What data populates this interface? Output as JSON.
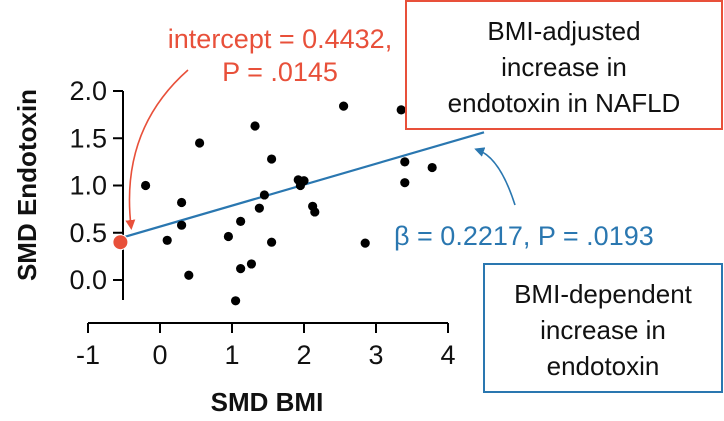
{
  "chart_data": {
    "type": "scatter",
    "xlabel": "SMD BMI",
    "ylabel": "SMD Endotoxin",
    "xlim": [
      -1,
      4
    ],
    "ylim": [
      -0.3,
      2.0
    ],
    "x_ticks": [
      "-1",
      "0",
      "1",
      "2",
      "3",
      "4"
    ],
    "y_ticks": [
      "0.0",
      "0.5",
      "1.0",
      "1.5",
      "2.0"
    ],
    "x_tick_values": [
      -1,
      0,
      1,
      2,
      3,
      4
    ],
    "y_tick_values": [
      0.0,
      0.5,
      1.0,
      1.5,
      2.0
    ],
    "points": [
      {
        "x": -0.2,
        "y": 1.0
      },
      {
        "x": 0.1,
        "y": 0.42
      },
      {
        "x": 0.3,
        "y": 0.82
      },
      {
        "x": 0.3,
        "y": 0.58
      },
      {
        "x": 0.4,
        "y": 0.05
      },
      {
        "x": 0.55,
        "y": 1.45
      },
      {
        "x": 0.95,
        "y": 0.46
      },
      {
        "x": 1.05,
        "y": -0.22
      },
      {
        "x": 1.12,
        "y": 0.62
      },
      {
        "x": 1.12,
        "y": 0.12
      },
      {
        "x": 1.27,
        "y": 0.17
      },
      {
        "x": 1.32,
        "y": 1.63
      },
      {
        "x": 1.38,
        "y": 0.76
      },
      {
        "x": 1.45,
        "y": 0.9
      },
      {
        "x": 1.55,
        "y": 1.28
      },
      {
        "x": 1.55,
        "y": 0.4
      },
      {
        "x": 1.92,
        "y": 1.06
      },
      {
        "x": 1.95,
        "y": 1.0
      },
      {
        "x": 2.0,
        "y": 1.05
      },
      {
        "x": 2.12,
        "y": 0.78
      },
      {
        "x": 2.15,
        "y": 0.72
      },
      {
        "x": 2.55,
        "y": 1.84
      },
      {
        "x": 2.85,
        "y": 0.39
      },
      {
        "x": 3.35,
        "y": 1.8
      },
      {
        "x": 3.4,
        "y": 1.25
      },
      {
        "x": 3.4,
        "y": 1.03
      },
      {
        "x": 3.78,
        "y": 1.19
      }
    ],
    "regression": {
      "intercept": 0.4432,
      "slope": 0.2217,
      "x_start": -0.55,
      "x_end": 4.5
    },
    "highlight_point": {
      "x": -0.55,
      "y": 0.4
    },
    "colors": {
      "points": "#000000",
      "regression": "#2a77b0",
      "highlight": "#e8503a",
      "red_text": "#e8503a",
      "blue_text": "#2a77b0"
    }
  },
  "annotations": {
    "intercept_text": "intercept = 0.4432,",
    "intercept_p": "P = .0145",
    "beta_text": "β = 0.2217,   P = .0193",
    "box_adjusted": [
      "BMI-adjusted",
      "increase in",
      "endotoxin in NAFLD"
    ],
    "box_dependent": [
      "BMI-dependent",
      "increase in",
      "endotoxin"
    ]
  }
}
